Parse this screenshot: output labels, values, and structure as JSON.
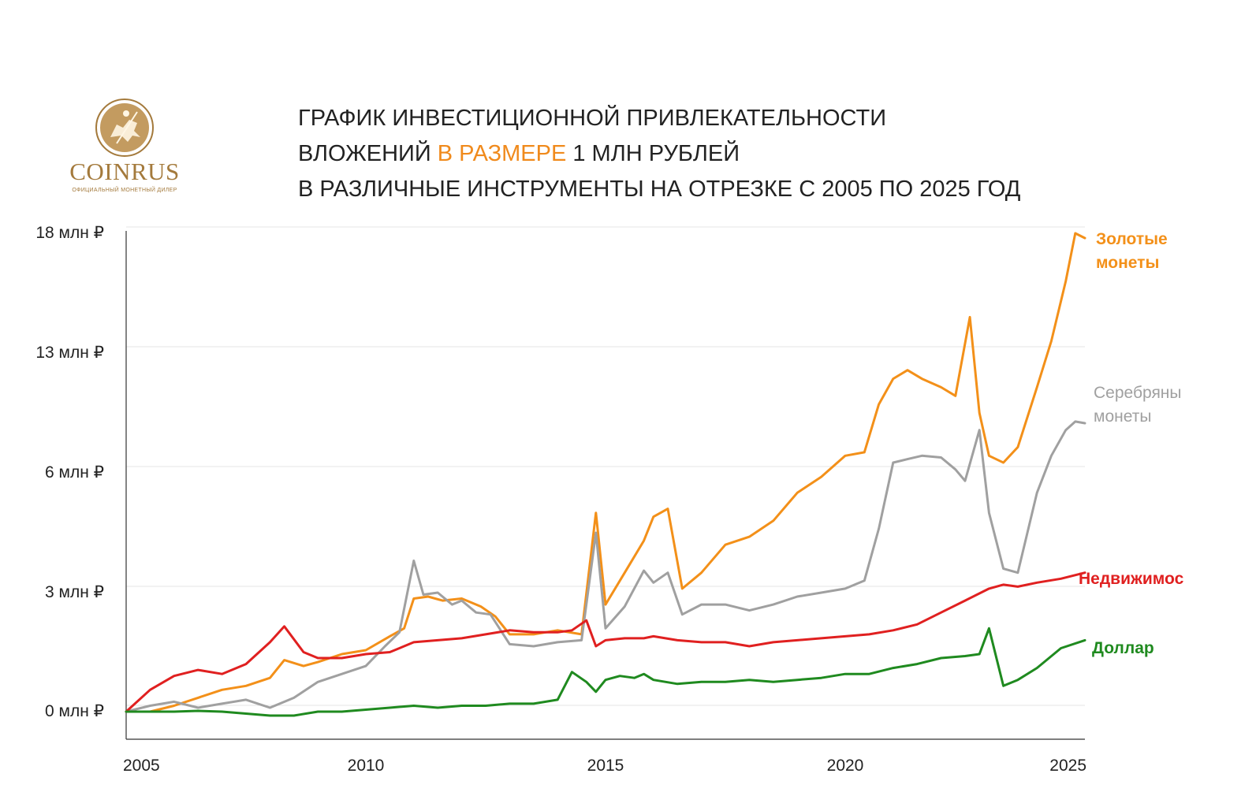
{
  "logo": {
    "name": "COINRUS",
    "tagline": "ОФИЦИАЛЬНЫЙ МОНЕТНЫЙ ДИЛЕР"
  },
  "title": {
    "line1": "ГРАФИК ИНВЕСТИЦИОННОЙ ПРИВЛЕКАТЕЛЬНОСТИ",
    "line2_pre": "ВЛОЖЕНИЙ ",
    "line2_accent": "В РАЗМЕРЕ",
    "line2_post": " 1 МЛН РУБЛЕЙ",
    "line3": "В РАЗЛИЧНЫЕ ИНСТРУМЕНТЫ НА ОТРЕЗКЕ С 2005 ПО 2025 ГОД"
  },
  "colors": {
    "accent": "#f08a1c",
    "gold": "#f39019",
    "silver": "#a0a0a0",
    "realty": "#e02020",
    "dollar": "#1f8a1f",
    "brand": "#a47a3c"
  },
  "chart_data": {
    "type": "line",
    "yticks": [
      "0 млн ₽",
      "3 млн ₽",
      "6 млн ₽",
      "13 млн ₽",
      "18 млн ₽"
    ],
    "xticks": [
      "2005",
      "2010",
      "2015",
      "2020",
      "2025"
    ],
    "xlim": [
      2005,
      2025
    ],
    "series": [
      {
        "name": "Золотые монеты",
        "color": "#f39019",
        "x": [
          2005.0,
          2005.5,
          2006.0,
          2006.5,
          2007.0,
          2007.5,
          2008.0,
          2008.3,
          2008.7,
          2009.0,
          2009.5,
          2010.0,
          2010.5,
          2010.8,
          2011.0,
          2011.3,
          2011.6,
          2012.0,
          2012.4,
          2012.7,
          2013.0,
          2013.5,
          2014.0,
          2014.5,
          2014.8,
          2015.0,
          2015.4,
          2015.8,
          2016.0,
          2016.3,
          2016.6,
          2017.0,
          2017.5,
          2018.0,
          2018.5,
          2019.0,
          2019.5,
          2020.0,
          2020.4,
          2020.7,
          2021.0,
          2021.3,
          2021.6,
          2022.0,
          2022.3,
          2022.6,
          2022.8,
          2023.0,
          2023.3,
          2023.6,
          2024.0,
          2024.3,
          2024.6,
          2024.8,
          2025.0
        ],
        "values": [
          0.0,
          0.0,
          0.15,
          0.35,
          0.55,
          0.65,
          0.85,
          1.3,
          1.15,
          1.25,
          1.45,
          1.55,
          1.9,
          2.1,
          2.85,
          2.9,
          2.8,
          2.85,
          2.65,
          2.4,
          1.95,
          1.95,
          2.05,
          1.95,
          5.0,
          2.7,
          3.5,
          4.3,
          4.9,
          5.1,
          3.1,
          3.5,
          4.2,
          4.4,
          4.8,
          5.5,
          5.9,
          7.0,
          7.2,
          10.0,
          11.5,
          12.0,
          11.5,
          11.0,
          10.5,
          14.5,
          9.5,
          7.0,
          6.6,
          7.5,
          11.0,
          13.5,
          16.0,
          18.0,
          17.8
        ]
      },
      {
        "name": "Серебряны монеты",
        "color": "#a0a0a0",
        "x": [
          2005.0,
          2005.5,
          2006.0,
          2006.5,
          2007.0,
          2007.5,
          2008.0,
          2008.5,
          2009.0,
          2009.5,
          2010.0,
          2010.4,
          2010.7,
          2011.0,
          2011.2,
          2011.5,
          2011.8,
          2012.0,
          2012.3,
          2012.6,
          2013.0,
          2013.5,
          2014.0,
          2014.5,
          2014.8,
          2015.0,
          2015.4,
          2015.8,
          2016.0,
          2016.3,
          2016.6,
          2017.0,
          2017.5,
          2018.0,
          2018.5,
          2019.0,
          2019.5,
          2020.0,
          2020.4,
          2020.7,
          2021.0,
          2021.3,
          2021.6,
          2022.0,
          2022.3,
          2022.5,
          2022.8,
          2023.0,
          2023.3,
          2023.6,
          2024.0,
          2024.3,
          2024.6,
          2024.8,
          2025.0
        ],
        "values": [
          0.0,
          0.15,
          0.25,
          0.1,
          0.2,
          0.3,
          0.1,
          0.35,
          0.75,
          0.95,
          1.15,
          1.65,
          2.0,
          3.8,
          2.95,
          3.0,
          2.7,
          2.8,
          2.5,
          2.45,
          1.7,
          1.65,
          1.75,
          1.8,
          4.5,
          2.1,
          2.65,
          3.55,
          3.25,
          3.5,
          2.45,
          2.7,
          2.7,
          2.55,
          2.7,
          2.9,
          3.0,
          3.1,
          3.3,
          4.6,
          6.6,
          6.8,
          7.0,
          6.9,
          6.2,
          5.8,
          8.5,
          5.0,
          3.6,
          3.5,
          5.5,
          7.0,
          8.5,
          9.0,
          8.9
        ]
      },
      {
        "name": "Недвижимос",
        "color": "#e02020",
        "x": [
          2005.0,
          2005.5,
          2006.0,
          2006.5,
          2007.0,
          2007.5,
          2008.0,
          2008.3,
          2008.7,
          2009.0,
          2009.5,
          2010.0,
          2010.5,
          2011.0,
          2011.5,
          2012.0,
          2012.5,
          2013.0,
          2013.5,
          2014.0,
          2014.3,
          2014.6,
          2014.8,
          2015.0,
          2015.4,
          2015.8,
          2016.0,
          2016.5,
          2017.0,
          2017.5,
          2018.0,
          2018.5,
          2019.0,
          2019.5,
          2020.0,
          2020.5,
          2021.0,
          2021.5,
          2022.0,
          2022.5,
          2023.0,
          2023.3,
          2023.6,
          2024.0,
          2024.5,
          2025.0
        ],
        "values": [
          0.0,
          0.55,
          0.9,
          1.05,
          0.95,
          1.2,
          1.75,
          2.15,
          1.5,
          1.35,
          1.35,
          1.45,
          1.5,
          1.75,
          1.8,
          1.85,
          1.95,
          2.05,
          2.0,
          2.0,
          2.05,
          2.3,
          1.65,
          1.8,
          1.85,
          1.85,
          1.9,
          1.8,
          1.75,
          1.75,
          1.65,
          1.75,
          1.8,
          1.85,
          1.9,
          1.95,
          2.05,
          2.2,
          2.5,
          2.8,
          3.1,
          3.2,
          3.15,
          3.25,
          3.35,
          3.5
        ]
      },
      {
        "name": "Доллар",
        "color": "#1f8a1f",
        "x": [
          2005.0,
          2005.5,
          2006.0,
          2006.5,
          2007.0,
          2007.5,
          2008.0,
          2008.5,
          2009.0,
          2009.5,
          2010.0,
          2010.5,
          2011.0,
          2011.5,
          2012.0,
          2012.5,
          2013.0,
          2013.5,
          2014.0,
          2014.3,
          2014.6,
          2014.8,
          2015.0,
          2015.3,
          2015.6,
          2015.8,
          2016.0,
          2016.5,
          2017.0,
          2017.5,
          2018.0,
          2018.5,
          2019.0,
          2019.5,
          2020.0,
          2020.5,
          2021.0,
          2021.5,
          2022.0,
          2022.5,
          2022.8,
          2023.0,
          2023.3,
          2023.6,
          2024.0,
          2024.5,
          2025.0
        ],
        "values": [
          0.0,
          0.0,
          0.0,
          0.02,
          0.0,
          -0.05,
          -0.1,
          -0.1,
          0.0,
          0.0,
          0.05,
          0.1,
          0.15,
          0.1,
          0.15,
          0.15,
          0.2,
          0.2,
          0.3,
          1.0,
          0.75,
          0.5,
          0.8,
          0.9,
          0.85,
          0.95,
          0.8,
          0.7,
          0.75,
          0.75,
          0.8,
          0.75,
          0.8,
          0.85,
          0.95,
          0.95,
          1.1,
          1.2,
          1.35,
          1.4,
          1.45,
          2.1,
          0.65,
          0.8,
          1.1,
          1.6,
          1.8
        ]
      }
    ]
  }
}
